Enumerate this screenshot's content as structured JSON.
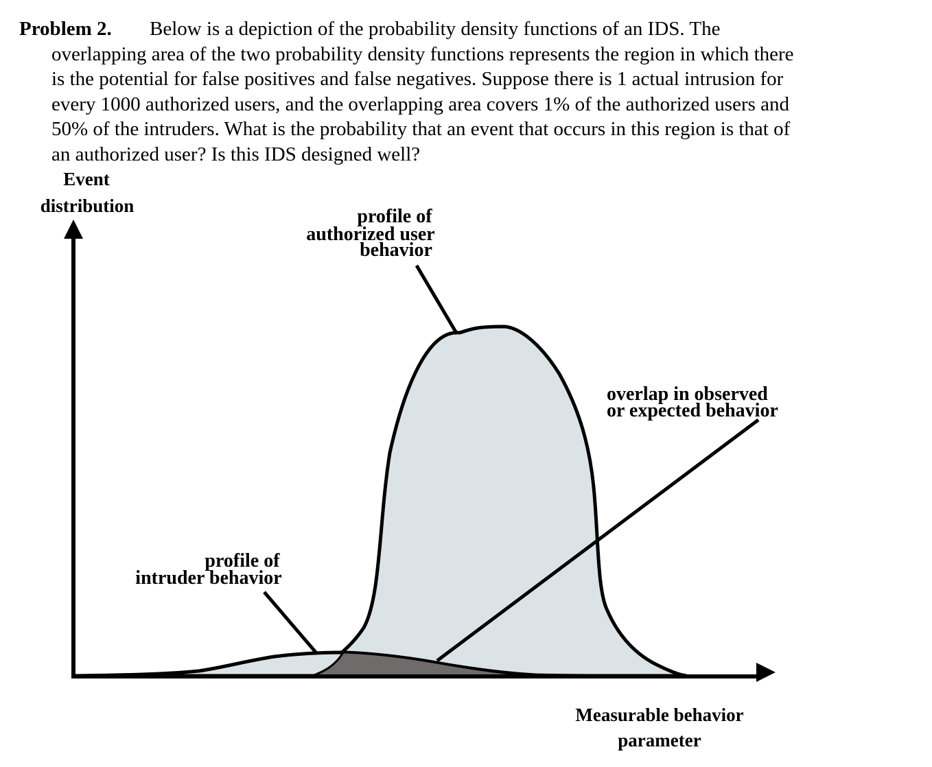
{
  "problem": {
    "label": "Problem 2.",
    "lines": [
      "Below is a depiction of the probability density functions of an IDS. The",
      "overlapping area of the two probability density functions represents the region in which there",
      "is the potential for false positives and false negatives. Suppose there is 1 actual intrusion for",
      "every 1000 authorized users, and the overlapping area covers 1% of the authorized users and",
      "50% of the intruders. What is the probability that an event that occurs in this region is that of",
      "an authorized user? Is this IDS designed well?"
    ]
  },
  "figure": {
    "y_axis_label": [
      "Event",
      "distribution"
    ],
    "x_axis_label": [
      "Measurable behavior",
      "parameter"
    ],
    "authorized_label": [
      "profile of",
      "authorized user",
      "behavior"
    ],
    "intruder_label": [
      "profile of",
      "intruder behavior"
    ],
    "overlap_label": [
      "overlap in observed",
      "or expected behavior"
    ],
    "colors": {
      "curve_fill": "#dce3e7",
      "overlap_fill": "#706b6b",
      "stroke": "#000000"
    }
  }
}
